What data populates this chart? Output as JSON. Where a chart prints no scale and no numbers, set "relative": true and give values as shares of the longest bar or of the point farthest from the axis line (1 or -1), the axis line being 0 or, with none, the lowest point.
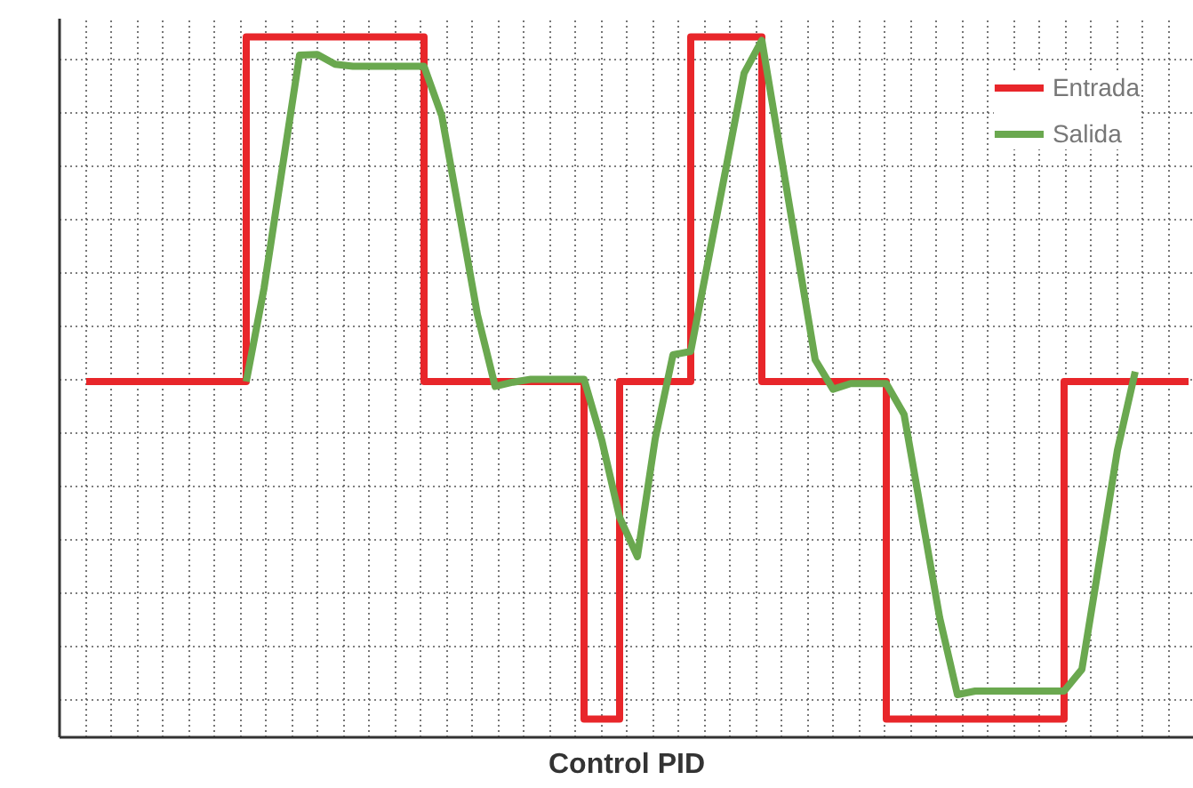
{
  "chart_data": {
    "type": "line",
    "title": "Control PID",
    "relative": true,
    "categories": [
      null,
      null,
      null,
      null,
      null,
      null,
      null,
      null,
      null,
      null,
      null,
      null,
      null,
      null,
      null,
      null,
      null,
      null,
      null,
      null,
      null,
      null,
      null,
      null,
      null,
      null,
      null,
      null,
      null,
      null,
      null,
      null,
      null,
      null,
      null,
      null,
      null,
      null,
      null,
      null,
      null,
      null,
      null,
      null,
      null,
      null,
      null,
      null,
      null,
      null,
      null,
      null,
      null,
      null,
      null,
      null,
      null,
      null,
      null,
      null,
      null,
      null,
      null
    ],
    "series": [
      {
        "name": "Entrada",
        "type": "step",
        "color": "#e8262a",
        "values": [
          0.508,
          0.508,
          0.508,
          0.508,
          0.508,
          0.508,
          0.508,
          0.508,
          0.508,
          1,
          1,
          1,
          1,
          1,
          1,
          1,
          1,
          1,
          1,
          0.508,
          0.508,
          0.508,
          0.508,
          0.508,
          0.508,
          0.508,
          0.508,
          0.508,
          0.026,
          0.026,
          0.508,
          0.508,
          0.508,
          0.508,
          1,
          1,
          1,
          1,
          0.508,
          0.508,
          0.508,
          0.508,
          0.508,
          0.508,
          0.508,
          0.026,
          0.026,
          0.026,
          0.026,
          0.026,
          0.026,
          0.026,
          0.026,
          0.026,
          0.026,
          0.508,
          0.508,
          0.508,
          0.508,
          0.508,
          0.508,
          0.508,
          0.508
        ]
      },
      {
        "name": "Salida",
        "color": "#6aa84f",
        "values": [
          null,
          null,
          null,
          null,
          null,
          null,
          null,
          null,
          null,
          0.508,
          0.641,
          0.808,
          0.974,
          0.975,
          0.961,
          0.958,
          0.958,
          0.958,
          0.958,
          0.958,
          0.887,
          0.746,
          0.604,
          0.501,
          0.507,
          0.511,
          0.511,
          0.511,
          0.511,
          0.424,
          0.314,
          0.258,
          0.426,
          0.546,
          0.551,
          0.683,
          0.815,
          0.948,
          0.995,
          0.843,
          0.691,
          0.539,
          0.497,
          0.505,
          0.505,
          0.505,
          0.461,
          0.316,
          0.171,
          0.061,
          0.066,
          0.066,
          0.066,
          0.066,
          0.066,
          0.066,
          0.097,
          0.253,
          0.41,
          0.522,
          null,
          null,
          null
        ]
      }
    ],
    "grid": true,
    "legend": "top right"
  }
}
